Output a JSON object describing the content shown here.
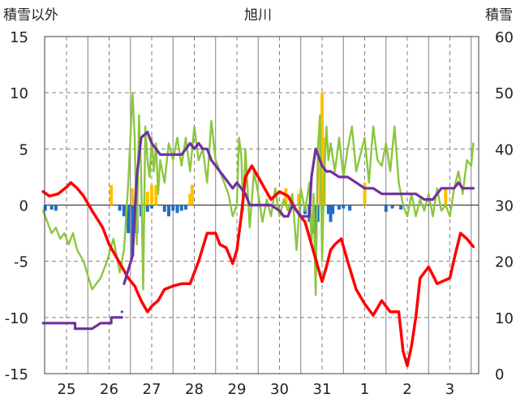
{
  "chart_data": {
    "type": "line",
    "title": "旭川",
    "left_axis_label": "積雪以外",
    "right_axis_label": "積雪",
    "categories": [
      "25",
      "26",
      "27",
      "28",
      "29",
      "30",
      "31",
      "1",
      "2",
      "3"
    ],
    "ylim_left": [
      -15,
      15
    ],
    "yticks_left": [
      "15",
      "10",
      "5",
      "0",
      "-5",
      "-10",
      "-15"
    ],
    "ylim_right": [
      0,
      60
    ],
    "yticks_right": [
      "60",
      "50",
      "40",
      "30",
      "20",
      "10",
      "0"
    ],
    "grid": true,
    "colors": {
      "temperature": "#ff0000",
      "wind": "#8cc63f",
      "snow_depth": "#7030a0",
      "snowfall": "#ffc000",
      "precip_negative": "#1f6fc5",
      "grid": "#808080"
    },
    "series": [
      {
        "key": "temperature",
        "axis": "left",
        "x": [
          -0.55,
          -0.4,
          -0.2,
          0,
          0.1,
          0.25,
          0.4,
          0.6,
          0.85,
          1.0,
          1.15,
          1.3,
          1.45,
          1.6,
          1.75,
          1.9,
          2.0,
          2.15,
          2.3,
          2.5,
          2.7,
          2.9,
          3.1,
          3.3,
          3.5,
          3.6,
          3.75,
          3.9,
          4.0,
          4.1,
          4.2,
          4.35,
          4.5,
          4.65,
          4.8,
          5.0,
          5.2,
          5.4,
          5.6,
          5.75,
          5.9,
          6.0,
          6.1,
          6.2,
          6.3,
          6.45,
          6.6,
          6.8,
          7.0,
          7.2,
          7.4,
          7.6,
          7.8,
          7.9,
          8.0,
          8.1,
          8.2,
          8.3,
          8.5,
          8.7,
          9.0,
          9.1,
          9.25,
          9.4,
          9.55
        ],
        "values": [
          1.2,
          0.8,
          1.0,
          1.6,
          2.0,
          1.5,
          0.8,
          -0.5,
          -2.0,
          -3.5,
          -4.5,
          -5.5,
          -6.5,
          -7.2,
          -8.5,
          -9.5,
          -9.0,
          -8.5,
          -7.5,
          -7.2,
          -7.0,
          -7.0,
          -5.0,
          -2.5,
          -2.5,
          -3.5,
          -3.8,
          -5.2,
          -4.0,
          -1.0,
          2.5,
          3.5,
          2.5,
          1.5,
          0.5,
          1.2,
          0.8,
          -0.5,
          -1.5,
          -3.5,
          -5.5,
          -6.8,
          -5.5,
          -4.0,
          -3.5,
          -3.0,
          -5.0,
          -7.5,
          -8.8,
          -9.8,
          -8.5,
          -9.5,
          -9.5,
          -13.0,
          -14.3,
          -12.5,
          -10.0,
          -6.5,
          -5.5,
          -7.0,
          -6.5,
          -4.8,
          -2.5,
          -3.0,
          -3.7
        ]
      },
      {
        "key": "wind",
        "axis": "left",
        "x": [
          -0.55,
          -0.45,
          -0.35,
          -0.25,
          -0.15,
          -0.05,
          0.05,
          0.15,
          0.25,
          0.4,
          0.6,
          0.8,
          0.95,
          1.1,
          1.25,
          1.35,
          1.45,
          1.55,
          1.6,
          1.65,
          1.7,
          1.75,
          1.8,
          1.85,
          1.9,
          1.95,
          2.0,
          2.05,
          2.1,
          2.15,
          2.2,
          2.3,
          2.4,
          2.5,
          2.6,
          2.7,
          2.8,
          2.9,
          3.0,
          3.1,
          3.2,
          3.3,
          3.4,
          3.5,
          3.6,
          3.7,
          3.8,
          3.9,
          4.0,
          4.05,
          4.1,
          4.15,
          4.2,
          4.3,
          4.4,
          4.5,
          4.6,
          4.7,
          4.8,
          4.9,
          5.0,
          5.1,
          5.2,
          5.3,
          5.4,
          5.5,
          5.6,
          5.7,
          5.75,
          5.8,
          5.85,
          5.9,
          5.95,
          6.0,
          6.05,
          6.1,
          6.15,
          6.2,
          6.3,
          6.4,
          6.5,
          6.6,
          6.7,
          6.8,
          6.9,
          7.0,
          7.1,
          7.2,
          7.3,
          7.4,
          7.5,
          7.6,
          7.7,
          7.8,
          7.9,
          8.0,
          8.1,
          8.2,
          8.3,
          8.4,
          8.5,
          8.6,
          8.7,
          8.8,
          8.9,
          9.0,
          9.1,
          9.2,
          9.3,
          9.4,
          9.5,
          9.55
        ],
        "values": [
          -0.5,
          -1.5,
          -2.5,
          -2.0,
          -3.0,
          -2.5,
          -3.5,
          -2.5,
          -4.0,
          -5.0,
          -7.5,
          -6.5,
          -5.0,
          -3.0,
          -6.0,
          -4.0,
          2.0,
          10.0,
          6.0,
          -3.5,
          8.0,
          3.0,
          -7.5,
          7.0,
          4.0,
          2.5,
          6.0,
          3.0,
          5.5,
          1.0,
          4.0,
          2.0,
          5.5,
          4.0,
          6.0,
          3.5,
          6.0,
          3.0,
          7.0,
          4.0,
          5.0,
          2.0,
          7.5,
          4.0,
          3.0,
          2.0,
          1.0,
          -1.0,
          0.0,
          6.0,
          4.5,
          -0.5,
          5.0,
          -2.0,
          3.0,
          1.0,
          -1.5,
          0.5,
          -1.0,
          1.5,
          -1.0,
          0.5,
          -0.5,
          1.0,
          -4.0,
          1.5,
          -0.5,
          2.0,
          -3.5,
          1.0,
          -8.0,
          5.0,
          8.0,
          -5.0,
          2.5,
          7.0,
          4.0,
          5.5,
          3.0,
          6.0,
          2.5,
          5.0,
          7.0,
          3.0,
          4.5,
          6.0,
          2.0,
          7.0,
          4.0,
          3.5,
          5.5,
          3.0,
          7.0,
          2.0,
          0.0,
          -1.0,
          1.0,
          -1.0,
          0.5,
          -0.5,
          1.0,
          -1.0,
          1.5,
          -0.5,
          0.0,
          -1.0,
          1.5,
          3.0,
          1.0,
          4.0,
          3.5,
          5.5
        ]
      },
      {
        "key": "snow_depth",
        "axis": "right",
        "segments": [
          {
            "x": [
              -0.55,
              0.2,
              0.2,
              0.6,
              0.6,
              0.8,
              0.9,
              1.05,
              1.05,
              1.3
            ],
            "values": [
              9,
              9,
              8,
              8,
              8,
              9,
              9,
              9,
              10,
              10
            ]
          },
          {
            "x": [
              1.3,
              1.3
            ],
            "values": [
              11,
              11
            ]
          },
          {
            "x": [
              1.35,
              1.55,
              1.65,
              1.75,
              1.9,
              2.0,
              2.1,
              2.2,
              2.3,
              2.5,
              2.7,
              2.9,
              3.0,
              3.1,
              3.2,
              3.3,
              3.4,
              3.5,
              3.6,
              3.7,
              3.8,
              3.9,
              4.0,
              4.1,
              4.2,
              4.3,
              4.6,
              4.8,
              5.0,
              5.1,
              5.2,
              5.3,
              5.4,
              5.5,
              5.7,
              5.75,
              5.85,
              5.95,
              6.0,
              6.1,
              6.2,
              6.4,
              6.6,
              6.8,
              7.0,
              7.2,
              7.4,
              7.6,
              7.8,
              8.0,
              8.2,
              8.4,
              8.6,
              8.8,
              9.0,
              9.1,
              9.2,
              9.3,
              9.55
            ],
            "values": [
              16,
              21,
              35,
              42,
              43,
              41,
              40,
              39,
              39,
              39,
              39,
              41,
              40,
              41,
              40,
              40,
              38,
              37,
              36,
              35,
              34,
              33,
              34,
              33,
              32,
              30,
              30,
              30,
              29,
              28,
              28,
              30,
              29,
              28,
              28,
              35,
              40,
              38,
              37,
              36,
              36,
              35,
              35,
              34,
              33,
              33,
              32,
              32,
              32,
              32,
              32,
              31,
              31,
              33,
              33,
              33,
              34,
              33,
              33
            ]
          }
        ]
      },
      {
        "key": "snowfall",
        "axis": "left",
        "bars": [
          {
            "x": 1.05,
            "value": 1.8
          },
          {
            "x": 1.55,
            "value": 1.5
          },
          {
            "x": 1.9,
            "value": 1.2
          },
          {
            "x": 2.0,
            "value": 1.8
          },
          {
            "x": 2.1,
            "value": 1.8
          },
          {
            "x": 2.9,
            "value": 1.0
          },
          {
            "x": 2.95,
            "value": 1.8
          },
          {
            "x": 5.15,
            "value": 1.5
          },
          {
            "x": 5.45,
            "value": 1.0
          },
          {
            "x": 5.95,
            "value": 7.5
          },
          {
            "x": 6.0,
            "value": 10.0
          },
          {
            "x": 6.05,
            "value": 6.0
          },
          {
            "x": 7.0,
            "value": 2.0
          },
          {
            "x": 8.9,
            "value": 1.5
          }
        ]
      },
      {
        "key": "precip_negative",
        "axis": "left",
        "bars": [
          {
            "x": -0.5,
            "value": -0.5
          },
          {
            "x": -0.35,
            "value": -0.4
          },
          {
            "x": -0.25,
            "value": -0.5
          },
          {
            "x": 1.25,
            "value": -0.5
          },
          {
            "x": 1.35,
            "value": -1.0
          },
          {
            "x": 1.45,
            "value": -2.5
          },
          {
            "x": 1.55,
            "value": -4.5
          },
          {
            "x": 1.65,
            "value": -2.5
          },
          {
            "x": 1.75,
            "value": -1.0
          },
          {
            "x": 1.9,
            "value": -0.6
          },
          {
            "x": 2.0,
            "value": -0.3
          },
          {
            "x": 2.3,
            "value": -0.6
          },
          {
            "x": 2.4,
            "value": -1.0
          },
          {
            "x": 2.5,
            "value": -0.5
          },
          {
            "x": 2.6,
            "value": -0.7
          },
          {
            "x": 2.7,
            "value": -0.5
          },
          {
            "x": 2.8,
            "value": -0.4
          },
          {
            "x": 5.6,
            "value": -0.8
          },
          {
            "x": 5.7,
            "value": -1.5
          },
          {
            "x": 5.8,
            "value": -2.5
          },
          {
            "x": 5.85,
            "value": -3.5
          },
          {
            "x": 5.9,
            "value": -1.5
          },
          {
            "x": 6.0,
            "value": -0.5
          },
          {
            "x": 6.15,
            "value": -0.8
          },
          {
            "x": 6.2,
            "value": -1.5
          },
          {
            "x": 6.25,
            "value": -0.8
          },
          {
            "x": 6.4,
            "value": -0.4
          },
          {
            "x": 6.5,
            "value": -0.3
          },
          {
            "x": 6.65,
            "value": -0.5
          },
          {
            "x": 7.5,
            "value": -0.6
          },
          {
            "x": 7.65,
            "value": -0.3
          },
          {
            "x": 7.85,
            "value": -0.4
          }
        ]
      }
    ]
  }
}
